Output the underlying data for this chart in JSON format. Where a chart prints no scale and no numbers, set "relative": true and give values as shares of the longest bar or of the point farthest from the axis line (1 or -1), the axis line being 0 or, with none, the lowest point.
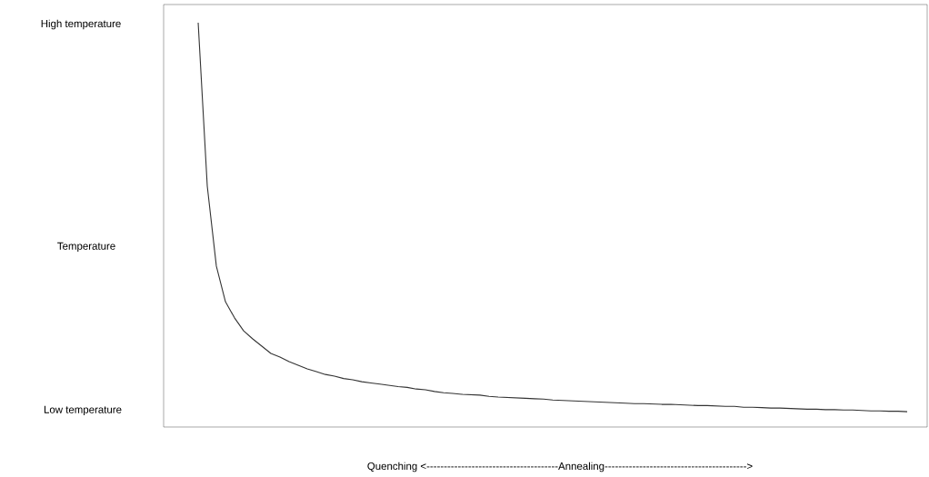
{
  "chart_data": {
    "type": "line",
    "relative": true,
    "xlabel": "Quenching <--------------------------------------Annealing----------------------------------------->",
    "annotations": [
      "High temperature",
      "Temperature",
      "Low temperature"
    ],
    "marker": "none",
    "line_style": "solid",
    "categories": [
      null,
      null,
      null,
      null,
      null,
      null,
      null,
      null,
      null,
      null,
      null,
      null,
      null,
      null,
      null,
      null,
      null,
      null,
      null,
      null,
      null,
      null,
      null,
      null,
      null,
      null,
      null,
      null,
      null,
      null,
      null,
      null,
      null,
      null,
      null,
      null,
      null,
      null,
      null,
      null,
      null,
      null,
      null,
      null,
      null,
      null,
      null,
      null,
      null,
      null,
      null,
      null,
      null,
      null,
      null,
      null,
      null,
      null,
      null,
      null,
      null,
      null,
      null,
      null,
      null,
      null,
      null,
      null,
      null,
      null,
      null,
      null,
      null,
      null,
      null,
      null,
      null,
      null,
      null
    ],
    "series": [
      {
        "color": "#333333",
        "values": [
          1.0,
          0.596,
          0.398,
          0.31,
          0.27,
          0.238,
          0.218,
          0.2,
          0.182,
          0.173,
          0.162,
          0.153,
          0.144,
          0.137,
          0.13,
          0.126,
          0.12,
          0.117,
          0.112,
          0.109,
          0.106,
          0.103,
          0.1,
          0.098,
          0.094,
          0.092,
          0.088,
          0.085,
          0.083,
          0.081,
          0.08,
          0.079,
          0.076,
          0.074,
          0.073,
          0.072,
          0.071,
          0.07,
          0.069,
          0.067,
          0.066,
          0.065,
          0.064,
          0.063,
          0.062,
          0.061,
          0.06,
          0.059,
          0.058,
          0.058,
          0.057,
          0.056,
          0.056,
          0.055,
          0.054,
          0.053,
          0.053,
          0.052,
          0.051,
          0.051,
          0.049,
          0.049,
          0.048,
          0.047,
          0.047,
          0.046,
          0.045,
          0.044,
          0.044,
          0.043,
          0.043,
          0.042,
          0.042,
          0.041,
          0.04,
          0.04,
          0.039,
          0.039,
          0.038
        ]
      }
    ]
  }
}
